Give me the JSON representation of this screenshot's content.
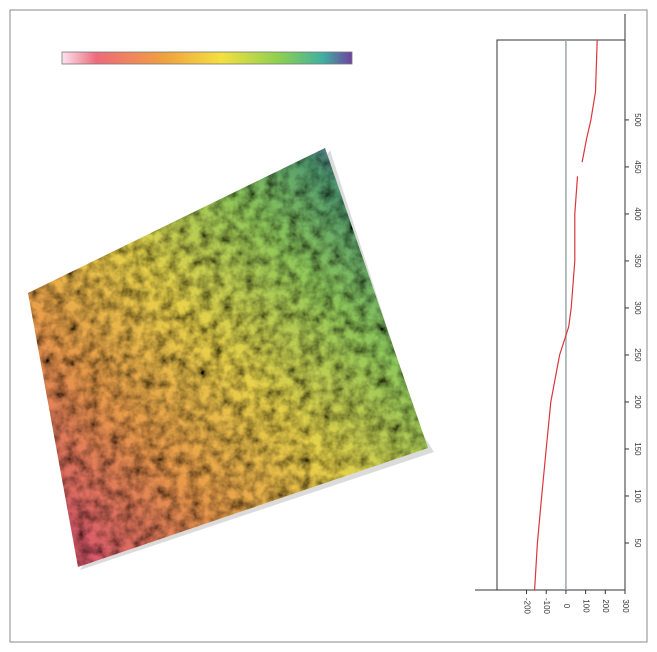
{
  "chart_data": {
    "type": "line",
    "orientation": "vertical",
    "x": [
      0,
      50,
      100,
      150,
      200,
      250,
      280,
      300,
      350,
      400,
      440,
      445,
      455,
      480,
      500,
      530,
      585
    ],
    "values": [
      -159,
      -145,
      -123,
      -100,
      -77,
      -32,
      14,
      27,
      45,
      45,
      59,
      null,
      82,
      105,
      127,
      150,
      159
    ],
    "color": "#d9363e",
    "xlim": [
      0,
      585
    ],
    "xticks": [
      50,
      100,
      150,
      200,
      250,
      300,
      350,
      400,
      450,
      500
    ],
    "ylim": [
      -350,
      300
    ],
    "yticks": [
      -200,
      -100,
      0,
      100,
      200,
      300
    ]
  }
}
